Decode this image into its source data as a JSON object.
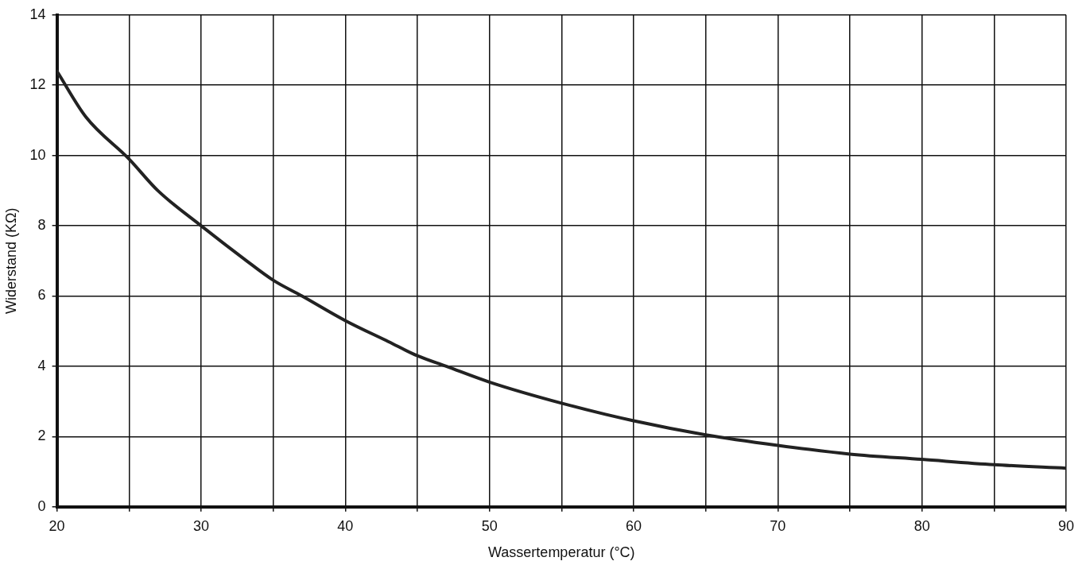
{
  "chart_data": {
    "type": "line",
    "xlabel": "Wassertemperatur (°C)",
    "ylabel": "Widerstand (KΩ)",
    "series": [
      {
        "color": "#222222",
        "x": [
          20,
          22,
          25,
          27,
          30,
          33,
          35,
          37,
          40,
          43,
          45,
          47,
          50,
          55,
          60,
          65,
          70,
          75,
          80,
          85,
          90
        ],
        "values": [
          12.4,
          11.1,
          9.9,
          9.0,
          8.0,
          7.05,
          6.45,
          6.0,
          5.3,
          4.7,
          4.3,
          4.0,
          3.55,
          2.95,
          2.45,
          2.05,
          1.75,
          1.5,
          1.35,
          1.2,
          1.1
        ]
      }
    ],
    "xlim": [
      20,
      90
    ],
    "xticks": [
      20,
      {
        "value": 25,
        "label": null
      },
      30,
      {
        "value": 35,
        "label": null
      },
      40,
      {
        "value": 45,
        "label": null
      },
      50,
      {
        "value": 55,
        "label": null
      },
      60,
      {
        "value": 65,
        "label": null
      },
      70,
      {
        "value": 75,
        "label": null
      },
      80,
      {
        "value": 85,
        "label": null
      },
      90
    ],
    "ylim": [
      0,
      14
    ],
    "yticks": [
      0,
      2,
      4,
      6,
      8,
      10,
      12,
      14
    ],
    "grid": true,
    "legend": false,
    "marker": "none",
    "line_style": "solid"
  }
}
